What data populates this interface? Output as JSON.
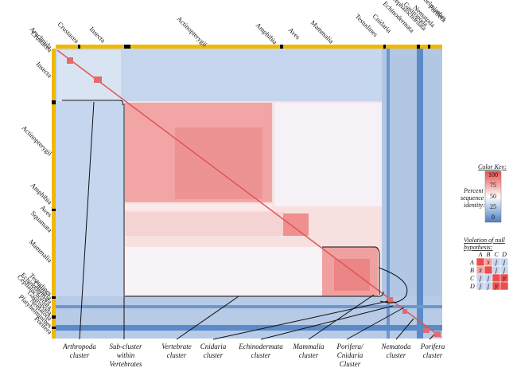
{
  "taxa": [
    "Crustacea",
    "Arachnida",
    "Insecta",
    "Actinopterygii",
    "Amphibia",
    "Aves",
    "Squamata",
    "Mammalia",
    "Testudines",
    "Cnidaria",
    "Echinodermata",
    "Cephalochordata",
    "Gastropoda",
    "Nematoda",
    "Platyhelminthes",
    "Porifera"
  ],
  "clusters": [
    "Arthropoda cluster",
    "Sub-cluster within Vertebrates",
    "Vertebrate cluster",
    "Cnidaria cluster",
    "Echinodermata cluster",
    "Mammalia cluster",
    "Porifera/ Cnidaria Cluster",
    "Nematoda cluster",
    "Porifera cluster"
  ],
  "color_key": {
    "title": "Color Key:",
    "axis_label": "Percent sequence identity:",
    "levels": [
      "100",
      "75",
      "50",
      "25",
      "0"
    ],
    "colors": [
      "#e8504f",
      "#f3a1a0",
      "#ffffff",
      "#a6bfe1",
      "#4a7ec4"
    ]
  },
  "violation": {
    "title": "Violation of null hypothesis:",
    "cols": [
      "A",
      "B",
      "C",
      "D"
    ],
    "rows": [
      {
        "label": "A",
        "cells": [
          "",
          "x",
          "j",
          "j"
        ]
      },
      {
        "label": "B",
        "cells": [
          "x",
          "",
          "j",
          "j"
        ]
      },
      {
        "label": "C",
        "cells": [
          "j",
          "j",
          "",
          "y"
        ]
      },
      {
        "label": "D",
        "cells": [
          "j",
          "j",
          "y",
          ""
        ]
      }
    ]
  }
}
